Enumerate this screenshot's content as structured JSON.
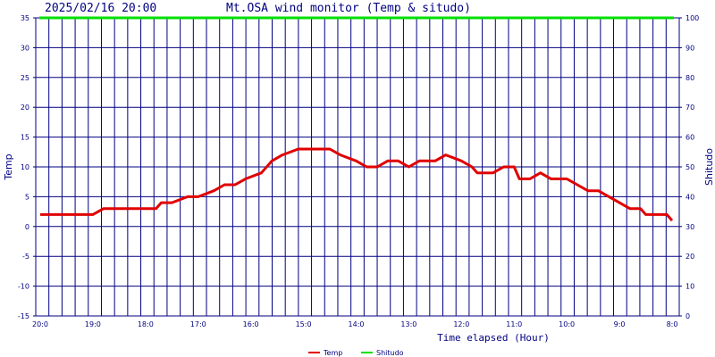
{
  "header": {
    "timestamp": "2025/02/16 20:00",
    "title": "Mt.OSA wind monitor (Temp & situdo)"
  },
  "colors": {
    "grid": "#000080",
    "frame": "#000080",
    "text": "#000080",
    "temp": "#e00000",
    "shitudo": "#00e000",
    "background": "#ffffff"
  },
  "chart_data": {
    "type": "line",
    "title": "Mt.OSA wind monitor (Temp & situdo)",
    "xlabel": "Time elapsed (Hour)",
    "ylabel_left": "Temp",
    "ylabel_right": "Shitudo",
    "ylim_left": [
      -15,
      35
    ],
    "ylim_right": [
      0,
      100
    ],
    "grid": true,
    "legend_position": "bottom",
    "x_ticks": [
      "20:0",
      "19:0",
      "18:0",
      "17:0",
      "16:0",
      "15:0",
      "14:0",
      "13:0",
      "12:0",
      "11:0",
      "10:0",
      "9:0",
      "8:0"
    ],
    "x_elapsed_hours": [
      0,
      12
    ],
    "y_ticks_left": [
      "35",
      "30",
      "25",
      "20",
      "15",
      "10",
      "5",
      "0",
      "-5",
      "-10",
      "-15"
    ],
    "y_ticks_right": [
      "100",
      "90",
      "80",
      "70",
      "60",
      "50",
      "40",
      "30",
      "20",
      "10",
      "0"
    ],
    "series": [
      {
        "name": "Temp",
        "axis": "left",
        "color": "#e00000",
        "x": [
          0,
          1,
          1.2,
          2,
          2.2,
          2.3,
          2.5,
          2.8,
          3.0,
          3.3,
          3.5,
          3.7,
          3.9,
          4.2,
          4.4,
          4.6,
          4.9,
          5.1,
          5.3,
          5.5,
          5.7,
          6.0,
          6.2,
          6.4,
          6.6,
          6.8,
          7.0,
          7.2,
          7.5,
          7.7,
          8.0,
          8.2,
          8.3,
          8.6,
          8.8,
          9.0,
          9.1,
          9.3,
          9.5,
          9.7,
          10.0,
          10.2,
          10.4,
          10.6,
          10.8,
          11.0,
          11.2,
          11.4,
          11.5,
          11.9,
          12.0
        ],
        "values": [
          2,
          2,
          3,
          3,
          3,
          4,
          4,
          5,
          5,
          6,
          7,
          7,
          8,
          9,
          11,
          12,
          13,
          13,
          13,
          13,
          12,
          11,
          10,
          10,
          11,
          11,
          10,
          11,
          11,
          12,
          11,
          10,
          9,
          9,
          10,
          10,
          8,
          8,
          9,
          8,
          8,
          7,
          6,
          6,
          5,
          4,
          3,
          3,
          2,
          2,
          1
        ]
      },
      {
        "name": "Shitudo",
        "axis": "right",
        "color": "#00e000",
        "x": [
          0,
          12
        ],
        "values": [
          100,
          100
        ]
      }
    ]
  },
  "legend": [
    {
      "label": "Temp",
      "color": "#e00000"
    },
    {
      "label": "Shitudo",
      "color": "#00e000"
    }
  ]
}
